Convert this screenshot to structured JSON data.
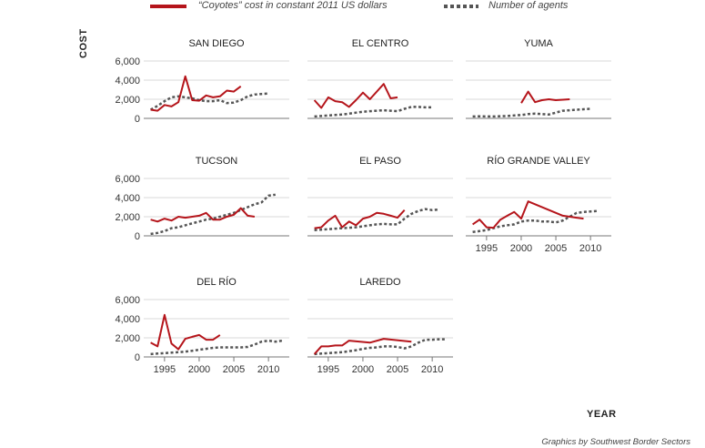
{
  "legend": {
    "cost_label": "“Coyotes” cost in constant 2011 US dollars",
    "agents_label": "Number of agents"
  },
  "ylabel": "COST",
  "xlabel": "YEAR",
  "credit": "Graphics by Southwest Border Sectors",
  "colors": {
    "cost": "#b5151b",
    "agents": "#555555",
    "grid": "#d9d9d9",
    "axis": "#777777"
  },
  "chart_data": {
    "type": "line",
    "ylim": [
      0,
      6000
    ],
    "y_ticks": [
      "0",
      "2,000",
      "4,000",
      "6,000"
    ],
    "xlim": [
      1992,
      2013
    ],
    "x_ticks": [
      "1995",
      "2000",
      "2005",
      "2010"
    ],
    "grid": true,
    "legend_position": "top",
    "panels": [
      {
        "title": "SAN DIEGO",
        "cost": [
          [
            1993,
            900
          ],
          [
            1994,
            800
          ],
          [
            1995,
            1400
          ],
          [
            1996,
            1250
          ],
          [
            1997,
            1700
          ],
          [
            1998,
            4400
          ],
          [
            1999,
            1900
          ],
          [
            2000,
            1850
          ],
          [
            2001,
            2400
          ],
          [
            2002,
            2200
          ],
          [
            2003,
            2300
          ],
          [
            2004,
            2900
          ],
          [
            2005,
            2800
          ],
          [
            2006,
            3350
          ]
        ],
        "agents": [
          [
            1993,
            900
          ],
          [
            1994,
            1300
          ],
          [
            1995,
            1800
          ],
          [
            1996,
            2200
          ],
          [
            1997,
            2300
          ],
          [
            1998,
            2200
          ],
          [
            1999,
            2100
          ],
          [
            2000,
            1900
          ],
          [
            2001,
            1800
          ],
          [
            2002,
            1800
          ],
          [
            2003,
            1900
          ],
          [
            2004,
            1600
          ],
          [
            2005,
            1650
          ],
          [
            2006,
            1900
          ],
          [
            2007,
            2300
          ],
          [
            2008,
            2500
          ],
          [
            2009,
            2550
          ],
          [
            2010,
            2600
          ]
        ]
      },
      {
        "title": "EL CENTRO",
        "cost": [
          [
            1993,
            1900
          ],
          [
            1994,
            1100
          ],
          [
            1995,
            2200
          ],
          [
            1996,
            1800
          ],
          [
            1997,
            1700
          ],
          [
            1998,
            1200
          ],
          [
            1999,
            1900
          ],
          [
            2000,
            2700
          ],
          [
            2001,
            2000
          ],
          [
            2003,
            3600
          ],
          [
            2004,
            2100
          ],
          [
            2005,
            2200
          ]
        ],
        "agents": [
          [
            1993,
            200
          ],
          [
            1994,
            250
          ],
          [
            1995,
            300
          ],
          [
            1996,
            350
          ],
          [
            1997,
            400
          ],
          [
            1998,
            500
          ],
          [
            1999,
            600
          ],
          [
            2000,
            700
          ],
          [
            2001,
            750
          ],
          [
            2002,
            800
          ],
          [
            2003,
            850
          ],
          [
            2004,
            800
          ],
          [
            2005,
            750
          ],
          [
            2006,
            1000
          ],
          [
            2007,
            1200
          ],
          [
            2008,
            1200
          ],
          [
            2009,
            1150
          ],
          [
            2010,
            1150
          ]
        ]
      },
      {
        "title": "YUMA",
        "cost": [
          [
            2000,
            1600
          ],
          [
            2001,
            2800
          ],
          [
            2002,
            1700
          ],
          [
            2003,
            1900
          ],
          [
            2004,
            2000
          ],
          [
            2005,
            1900
          ],
          [
            2006,
            1950
          ],
          [
            2007,
            2000
          ]
        ],
        "agents": [
          [
            1993,
            200
          ],
          [
            1994,
            220
          ],
          [
            1995,
            200
          ],
          [
            1996,
            200
          ],
          [
            1997,
            230
          ],
          [
            1998,
            250
          ],
          [
            1999,
            300
          ],
          [
            2000,
            350
          ],
          [
            2001,
            450
          ],
          [
            2002,
            500
          ],
          [
            2003,
            450
          ],
          [
            2004,
            400
          ],
          [
            2005,
            600
          ],
          [
            2006,
            800
          ],
          [
            2007,
            850
          ],
          [
            2008,
            900
          ],
          [
            2009,
            950
          ],
          [
            2010,
            1000
          ]
        ]
      },
      {
        "title": "TUCSON",
        "cost": [
          [
            1993,
            1700
          ],
          [
            1994,
            1500
          ],
          [
            1995,
            1800
          ],
          [
            1996,
            1600
          ],
          [
            1997,
            2000
          ],
          [
            1998,
            1900
          ],
          [
            1999,
            2000
          ],
          [
            2000,
            2100
          ],
          [
            2001,
            2400
          ],
          [
            2002,
            1700
          ],
          [
            2003,
            1700
          ],
          [
            2004,
            2000
          ],
          [
            2005,
            2200
          ],
          [
            2006,
            2900
          ],
          [
            2007,
            2100
          ],
          [
            2008,
            2000
          ]
        ],
        "agents": [
          [
            1993,
            200
          ],
          [
            1994,
            300
          ],
          [
            1995,
            500
          ],
          [
            1996,
            800
          ],
          [
            1997,
            900
          ],
          [
            1998,
            1100
          ],
          [
            1999,
            1300
          ],
          [
            2000,
            1500
          ],
          [
            2001,
            1700
          ],
          [
            2002,
            1800
          ],
          [
            2003,
            2000
          ],
          [
            2004,
            2200
          ],
          [
            2005,
            2400
          ],
          [
            2006,
            2700
          ],
          [
            2007,
            3000
          ],
          [
            2008,
            3300
          ],
          [
            2009,
            3500
          ],
          [
            2010,
            4200
          ],
          [
            2011,
            4300
          ]
        ]
      },
      {
        "title": "EL PASO",
        "cost": [
          [
            1993,
            800
          ],
          [
            1994,
            900
          ],
          [
            1995,
            1600
          ],
          [
            1996,
            2100
          ],
          [
            1997,
            900
          ],
          [
            1998,
            1500
          ],
          [
            1999,
            1100
          ],
          [
            2000,
            1800
          ],
          [
            2001,
            2000
          ],
          [
            2002,
            2400
          ],
          [
            2003,
            2300
          ],
          [
            2004,
            2100
          ],
          [
            2005,
            1900
          ],
          [
            2006,
            2700
          ]
        ],
        "agents": [
          [
            1993,
            600
          ],
          [
            1994,
            650
          ],
          [
            1995,
            700
          ],
          [
            1996,
            750
          ],
          [
            1997,
            800
          ],
          [
            1998,
            850
          ],
          [
            1999,
            900
          ],
          [
            2000,
            1000
          ],
          [
            2001,
            1100
          ],
          [
            2002,
            1200
          ],
          [
            2003,
            1250
          ],
          [
            2004,
            1200
          ],
          [
            2005,
            1200
          ],
          [
            2006,
            1800
          ],
          [
            2007,
            2300
          ],
          [
            2008,
            2600
          ],
          [
            2009,
            2800
          ],
          [
            2010,
            2700
          ],
          [
            2011,
            2750
          ]
        ]
      },
      {
        "title": "RÍO GRANDE VALLEY",
        "cost": [
          [
            1993,
            1200
          ],
          [
            1994,
            1700
          ],
          [
            1995,
            900
          ],
          [
            1996,
            850
          ],
          [
            1997,
            1700
          ],
          [
            1998,
            2100
          ],
          [
            1999,
            2500
          ],
          [
            2000,
            1800
          ],
          [
            2001,
            3600
          ],
          [
            2006,
            2100
          ],
          [
            2007,
            2000
          ],
          [
            2008,
            1900
          ],
          [
            2009,
            1800
          ]
        ],
        "agents": [
          [
            1993,
            400
          ],
          [
            1994,
            500
          ],
          [
            1995,
            600
          ],
          [
            1996,
            800
          ],
          [
            1997,
            1000
          ],
          [
            1998,
            1100
          ],
          [
            1999,
            1200
          ],
          [
            2000,
            1500
          ],
          [
            2001,
            1600
          ],
          [
            2002,
            1600
          ],
          [
            2003,
            1500
          ],
          [
            2004,
            1500
          ],
          [
            2005,
            1400
          ],
          [
            2006,
            1600
          ],
          [
            2007,
            2000
          ],
          [
            2008,
            2400
          ],
          [
            2009,
            2500
          ],
          [
            2010,
            2550
          ],
          [
            2011,
            2600
          ]
        ]
      },
      {
        "title": "DEL RÍO",
        "cost": [
          [
            1993,
            1500
          ],
          [
            1994,
            1100
          ],
          [
            1995,
            4400
          ],
          [
            1996,
            1400
          ],
          [
            1997,
            800
          ],
          [
            1998,
            1900
          ],
          [
            1999,
            2100
          ],
          [
            2000,
            2300
          ],
          [
            2001,
            1800
          ],
          [
            2002,
            1800
          ],
          [
            2003,
            2300
          ]
        ],
        "agents": [
          [
            1993,
            300
          ],
          [
            1994,
            350
          ],
          [
            1995,
            400
          ],
          [
            1996,
            450
          ],
          [
            1997,
            500
          ],
          [
            1998,
            550
          ],
          [
            1999,
            650
          ],
          [
            2000,
            750
          ],
          [
            2001,
            850
          ],
          [
            2002,
            950
          ],
          [
            2003,
            1000
          ],
          [
            2004,
            1000
          ],
          [
            2005,
            1000
          ],
          [
            2006,
            1000
          ],
          [
            2007,
            1050
          ],
          [
            2008,
            1300
          ],
          [
            2009,
            1600
          ],
          [
            2010,
            1700
          ],
          [
            2011,
            1600
          ],
          [
            2012,
            1700
          ]
        ]
      },
      {
        "title": "LAREDO",
        "cost": [
          [
            1993,
            300
          ],
          [
            1994,
            1100
          ],
          [
            1995,
            1100
          ],
          [
            1996,
            1200
          ],
          [
            1997,
            1200
          ],
          [
            1998,
            1700
          ],
          [
            2001,
            1500
          ],
          [
            2003,
            1900
          ],
          [
            2007,
            1600
          ]
        ],
        "agents": [
          [
            1993,
            300
          ],
          [
            1994,
            350
          ],
          [
            1995,
            400
          ],
          [
            1996,
            450
          ],
          [
            1997,
            500
          ],
          [
            1998,
            600
          ],
          [
            1999,
            700
          ],
          [
            2000,
            850
          ],
          [
            2001,
            950
          ],
          [
            2002,
            1000
          ],
          [
            2003,
            1100
          ],
          [
            2004,
            1100
          ],
          [
            2005,
            1050
          ],
          [
            2006,
            900
          ],
          [
            2007,
            1100
          ],
          [
            2008,
            1500
          ],
          [
            2009,
            1800
          ],
          [
            2010,
            1800
          ],
          [
            2011,
            1850
          ],
          [
            2012,
            1850
          ]
        ]
      }
    ]
  }
}
